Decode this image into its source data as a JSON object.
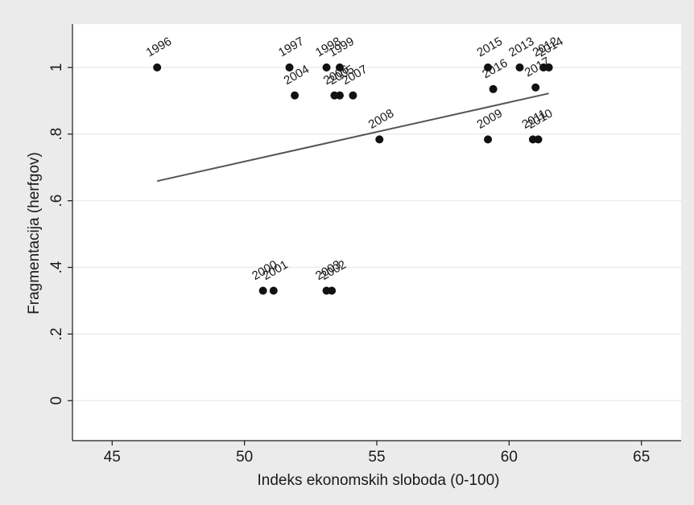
{
  "chart_data": {
    "type": "scatter",
    "xlabel": "Indeks ekonomskih sloboda (0-100)",
    "ylabel": "Fragmentacija (herfgov)",
    "xlim": [
      43.5,
      66.5
    ],
    "ylim": [
      -0.12,
      1.13
    ],
    "xticks": [
      45,
      50,
      55,
      60,
      65
    ],
    "xtick_labels": [
      "45",
      "50",
      "55",
      "60",
      "65"
    ],
    "yticks": [
      0,
      0.2,
      0.4,
      0.6,
      0.8,
      1
    ],
    "ytick_labels": [
      "0",
      ".2",
      ".4",
      ".6",
      ".8",
      "1"
    ],
    "grid": "horizontal",
    "points": [
      {
        "label": "1996",
        "x": 46.7,
        "y": 1.0
      },
      {
        "label": "1997",
        "x": 51.7,
        "y": 1.0
      },
      {
        "label": "1998",
        "x": 53.1,
        "y": 1.0
      },
      {
        "label": "1999",
        "x": 53.6,
        "y": 1.0
      },
      {
        "label": "2000",
        "x": 50.7,
        "y": 0.33
      },
      {
        "label": "2001",
        "x": 51.1,
        "y": 0.33
      },
      {
        "label": "2002",
        "x": 53.3,
        "y": 0.33
      },
      {
        "label": "2003",
        "x": 53.1,
        "y": 0.33
      },
      {
        "label": "2004",
        "x": 51.9,
        "y": 0.916
      },
      {
        "label": "2005",
        "x": 53.6,
        "y": 0.916
      },
      {
        "label": "2006",
        "x": 53.4,
        "y": 0.916
      },
      {
        "label": "2007",
        "x": 54.1,
        "y": 0.916
      },
      {
        "label": "2008",
        "x": 55.1,
        "y": 0.784
      },
      {
        "label": "2009",
        "x": 59.2,
        "y": 0.784
      },
      {
        "label": "2010",
        "x": 61.1,
        "y": 0.784
      },
      {
        "label": "2011",
        "x": 60.9,
        "y": 0.784
      },
      {
        "label": "2012",
        "x": 61.3,
        "y": 1.0
      },
      {
        "label": "2013",
        "x": 60.4,
        "y": 1.0
      },
      {
        "label": "2014",
        "x": 61.5,
        "y": 1.0
      },
      {
        "label": "2015",
        "x": 59.2,
        "y": 1.0
      },
      {
        "label": "2016",
        "x": 59.4,
        "y": 0.935
      },
      {
        "label": "2017",
        "x": 61.0,
        "y": 0.94
      }
    ],
    "fit_line": {
      "x": [
        46.7,
        61.5
      ],
      "y": [
        0.659,
        0.922
      ]
    }
  }
}
